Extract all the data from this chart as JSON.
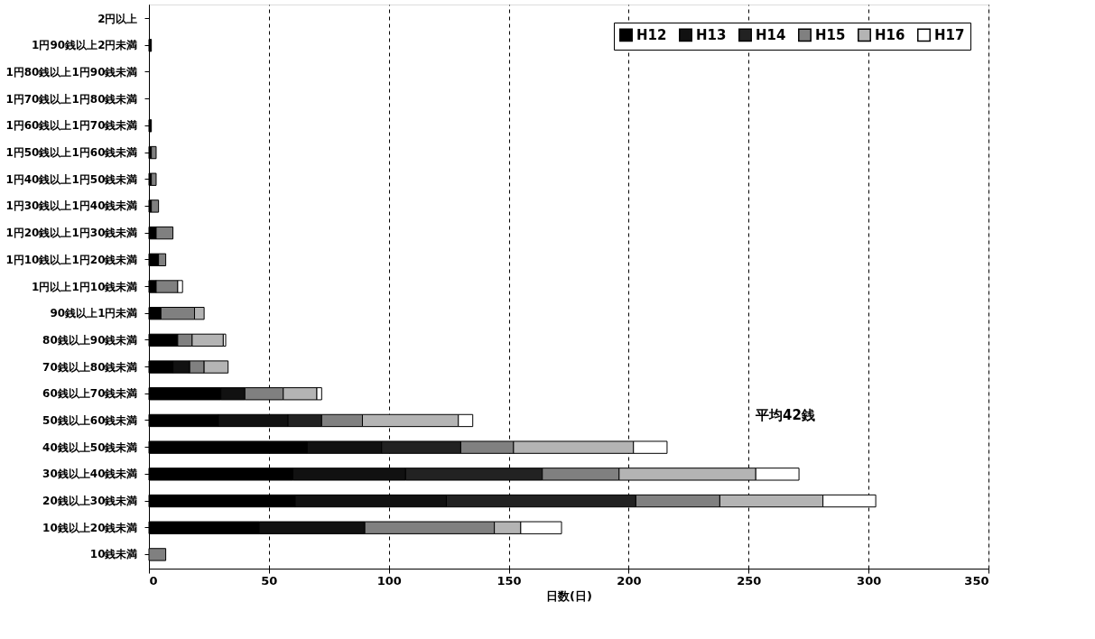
{
  "chart_data": {
    "type": "bar",
    "orientation": "horizontal",
    "stacked": true,
    "categories": [
      "2円以上",
      "1円90銭以上2円未満",
      "1円80銭以上1円90銭未満",
      "1円70銭以上1円80銭未満",
      "1円60銭以上1円70銭未満",
      "1円50銭以上1円60銭未満",
      "1円40銭以上1円50銭未満",
      "1円30銭以上1円40銭未満",
      "1円20銭以上1円30銭未満",
      "1円10銭以上1円20銭未満",
      "1円以上1円10銭未満",
      "90銭以上1円未満",
      "80銭以上90銭未満",
      "70銭以上80銭未満",
      "60銭以上70銭未満",
      "50銭以上60銭未満",
      "40銭以上50銭未満",
      "30銭以上40銭未満",
      "20銭以上30銭未満",
      "10銭以上20銭未満",
      "10銭未満"
    ],
    "series": [
      {
        "name": "H12",
        "color": "#000000",
        "values": [
          0,
          1,
          0,
          0,
          1,
          1,
          1,
          1,
          3,
          4,
          3,
          5,
          12,
          10,
          30,
          29,
          66,
          60,
          61,
          46,
          0
        ]
      },
      {
        "name": "H13",
        "color": "#111111",
        "values": [
          0,
          0,
          0,
          0,
          0,
          0,
          0,
          0,
          0,
          0,
          0,
          0,
          0,
          7,
          10,
          29,
          31,
          47,
          63,
          44,
          0
        ]
      },
      {
        "name": "H14",
        "color": "#222222",
        "values": [
          0,
          0,
          0,
          0,
          0,
          0,
          0,
          0,
          0,
          0,
          0,
          0,
          0,
          0,
          0,
          14,
          33,
          57,
          79,
          0,
          0
        ]
      },
      {
        "name": "H15",
        "color": "#808080",
        "values": [
          0,
          0,
          0,
          0,
          0,
          2,
          2,
          3,
          7,
          3,
          9,
          14,
          6,
          6,
          16,
          17,
          22,
          32,
          35,
          54,
          7
        ]
      },
      {
        "name": "H16",
        "color": "#b4b4b4",
        "values": [
          0,
          0,
          0,
          0,
          0,
          0,
          0,
          0,
          0,
          0,
          0,
          4,
          13,
          10,
          14,
          40,
          50,
          57,
          43,
          11,
          0
        ]
      },
      {
        "name": "H17",
        "color": "#ffffff",
        "values": [
          0,
          0,
          0,
          0,
          0,
          0,
          0,
          0,
          0,
          0,
          2,
          0,
          1,
          0,
          2,
          6,
          14,
          18,
          22,
          17,
          0
        ]
      }
    ],
    "xlim": [
      0,
      350
    ],
    "xticks": [
      0,
      50,
      100,
      150,
      200,
      250,
      300,
      350
    ],
    "xlabel": "日数(日)",
    "grid": "x",
    "legend": "top right",
    "annotations": [
      "平均42銭"
    ]
  }
}
